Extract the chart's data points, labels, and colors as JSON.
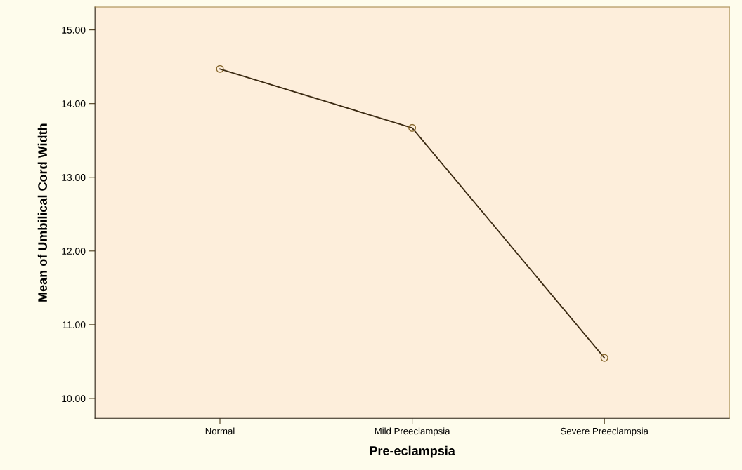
{
  "chart_data": {
    "type": "line",
    "xlabel": "Pre-eclampsia",
    "ylabel": "Mean of Umbilical Cord Width",
    "categories": [
      "Normal",
      "Mild Preeclampsia",
      "Severe Preeclampsia"
    ],
    "series": [
      {
        "color": "#3b2a12",
        "values": [
          14.47,
          13.67,
          10.55
        ]
      }
    ],
    "ylim": [
      9.73,
      15.31
    ],
    "yticks": [
      {
        "value": 10,
        "label": "10.00"
      },
      {
        "value": 11,
        "label": "11.00"
      },
      {
        "value": 12,
        "label": "12.00"
      },
      {
        "value": 13,
        "label": "13.00"
      },
      {
        "value": 14,
        "label": "14.00"
      },
      {
        "value": 15,
        "label": "15.00"
      }
    ],
    "marker": "circle",
    "line_style": "solid",
    "grid": false,
    "legend": false
  }
}
